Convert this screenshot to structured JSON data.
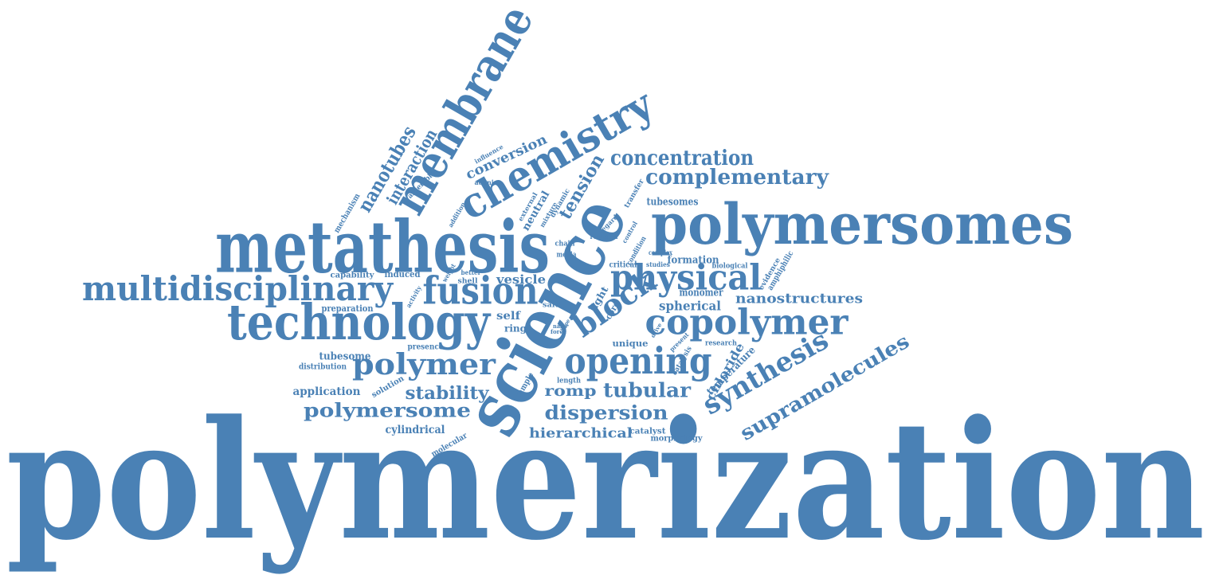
{
  "colors": {
    "word": "#4a81b5",
    "background": "#ffffff"
  },
  "words": [
    "polymerization",
    "science",
    "metathesis",
    "polymersomes",
    "membrane",
    "chemistry",
    "technology",
    "multidisciplinary",
    "fusion",
    "physical",
    "copolymer",
    "opening",
    "block",
    "polymer",
    "concentration",
    "complementary",
    "synthesis",
    "supramolecules",
    "tubular",
    "dispersion",
    "polymersome",
    "stability",
    "nanotubes",
    "interaction",
    "tension",
    "conversion",
    "nanostructures",
    "hierarchical",
    "cylindrical",
    "romp",
    "spherical",
    "vesicle",
    "chloride",
    "temperature",
    "tubesomes",
    "formation",
    "monomer",
    "self",
    "ring",
    "application",
    "tubesome",
    "unique",
    "light",
    "core",
    "preparation",
    "capability",
    "induced",
    "distribution",
    "presence",
    "solution",
    "catalyst",
    "morphology",
    "research",
    "biological",
    "critical",
    "amphiphilic",
    "evidence",
    "studies",
    "complex",
    "media",
    "chain",
    "salt",
    "length",
    "rompisa",
    "catalysis",
    "shell",
    "better",
    "neutral",
    "dynamic",
    "mixture",
    "external",
    "addition",
    "influence",
    "adenine",
    "assemble",
    "mechanism",
    "molecular",
    "sample",
    "activity",
    "weight",
    "drive",
    "force",
    "shape",
    "nano",
    "present",
    "transfer",
    "regard",
    "control",
    "condition"
  ]
}
